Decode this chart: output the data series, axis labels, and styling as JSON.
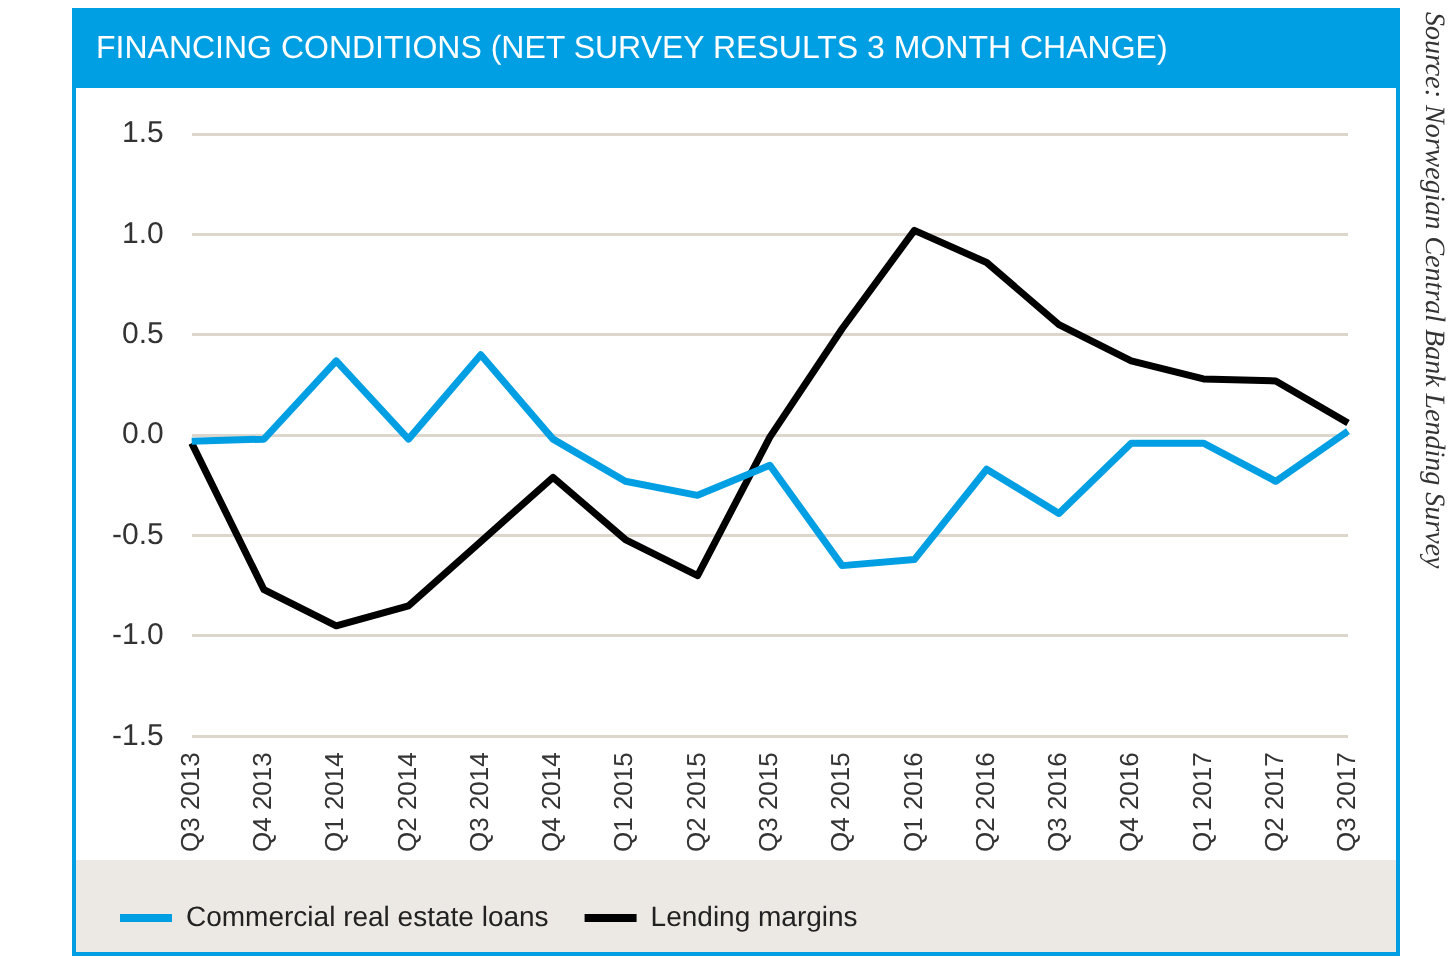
{
  "chart_data": {
    "type": "line",
    "title": "FINANCING CONDITIONS (NET SURVEY RESULTS 3 MONTH CHANGE)",
    "categories": [
      "Q3 2013",
      "Q4 2013",
      "Q1 2014",
      "Q2 2014",
      "Q3 2014",
      "Q4 2014",
      "Q1 2015",
      "Q2 2015",
      "Q3 2015",
      "Q4 2015",
      "Q1 2016",
      "Q2 2016",
      "Q3 2016",
      "Q4 2016",
      "Q1 2017",
      "Q2 2017",
      "Q3 2017"
    ],
    "series": [
      {
        "name": "Commercial real estate loans",
        "color": "#009fe3",
        "values": [
          -0.03,
          -0.02,
          0.37,
          -0.02,
          0.4,
          -0.02,
          -0.23,
          -0.3,
          -0.15,
          -0.65,
          -0.62,
          -0.17,
          -0.39,
          -0.04,
          -0.04,
          -0.23,
          0.02
        ]
      },
      {
        "name": "Lending margins",
        "color": "#000000",
        "values": [
          -0.04,
          -0.77,
          -0.95,
          -0.85,
          -0.53,
          -0.21,
          -0.52,
          -0.7,
          -0.01,
          0.53,
          1.02,
          0.86,
          0.55,
          0.37,
          0.28,
          0.27,
          0.06
        ]
      }
    ],
    "ylim": [
      -1.5,
      1.5
    ],
    "yticks": [
      -1.5,
      {
        "value": -1,
        "label": "-1.0"
      },
      -0.5,
      {
        "value": 0,
        "label": "0.0"
      },
      0.5,
      {
        "value": 1,
        "label": "1.0"
      },
      1.5
    ],
    "grid": "y",
    "legend": "bottom",
    "marker": "none",
    "line_style": "solid",
    "annotations": [
      "Source: Norwegian Central Bank Lending Survey"
    ]
  }
}
